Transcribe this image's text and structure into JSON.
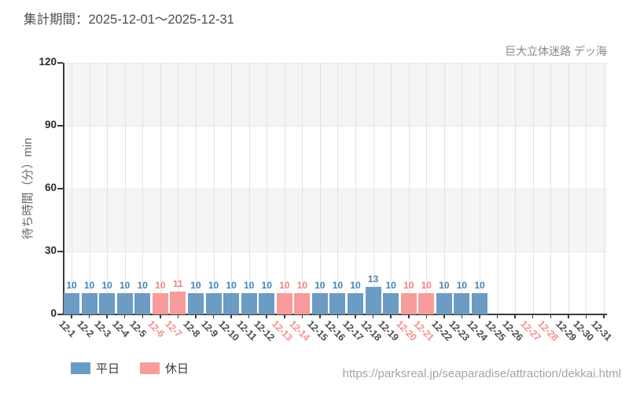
{
  "header": {
    "period_title": "集計期間：2025-12-01～2025-12-31",
    "attraction_name": "巨大立体迷路 デッ海"
  },
  "footer": {
    "url": "https://parksreal.jp/seaparadise/attraction/dekkai.html"
  },
  "colors": {
    "weekday_bar": "#6c9bc4",
    "holiday_bar": "#f89b9b",
    "weekday_value_label": "#4a82b0",
    "holiday_value_label": "#ef8287",
    "weekday_tick": "#4d4d4d",
    "holiday_tick": "#f5918f",
    "band": "#f5f5f5",
    "axis": "#3b3b3b"
  },
  "chart_data": {
    "type": "bar",
    "title": "集計期間：2025-12-01～2025-12-31",
    "xlabel": "",
    "ylabel": "待ち時間（分）min",
    "ylim": [
      0,
      120
    ],
    "yticks": [
      0,
      30,
      60,
      90,
      120
    ],
    "grid": true,
    "legend_position": "bottom-left",
    "categories": [
      "12-1",
      "12-2",
      "12-3",
      "12-4",
      "12-5",
      "12-6",
      "12-7",
      "12-8",
      "12-9",
      "12-10",
      "12-11",
      "12-12",
      "12-13",
      "12-14",
      "12-15",
      "12-16",
      "12-17",
      "12-18",
      "12-19",
      "12-20",
      "12-21",
      "12-22",
      "12-23",
      "12-24",
      "12-25",
      "12-26",
      "12-27",
      "12-28",
      "12-29",
      "12-30",
      "12-31"
    ],
    "day_type": [
      "weekday",
      "weekday",
      "weekday",
      "weekday",
      "weekday",
      "holiday",
      "holiday",
      "weekday",
      "weekday",
      "weekday",
      "weekday",
      "weekday",
      "holiday",
      "holiday",
      "weekday",
      "weekday",
      "weekday",
      "weekday",
      "weekday",
      "holiday",
      "holiday",
      "weekday",
      "weekday",
      "weekday",
      "weekday",
      "weekday",
      "holiday",
      "holiday",
      "weekday",
      "weekday",
      "weekday"
    ],
    "series": [
      {
        "name": "平日",
        "color": "#6c9bc4",
        "label_color": "#4a82b0",
        "values": [
          10,
          10,
          10,
          10,
          10,
          null,
          null,
          10,
          10,
          10,
          10,
          10,
          null,
          null,
          10,
          10,
          10,
          13,
          10,
          null,
          null,
          10,
          10,
          10,
          null,
          null,
          null,
          null,
          null,
          null,
          null
        ]
      },
      {
        "name": "休日",
        "color": "#f89b9b",
        "label_color": "#ef8287",
        "values": [
          null,
          null,
          null,
          null,
          null,
          10,
          11,
          null,
          null,
          null,
          null,
          null,
          10,
          10,
          null,
          null,
          null,
          null,
          null,
          10,
          10,
          null,
          null,
          null,
          null,
          null,
          null,
          null,
          null,
          null,
          null
        ]
      }
    ]
  }
}
